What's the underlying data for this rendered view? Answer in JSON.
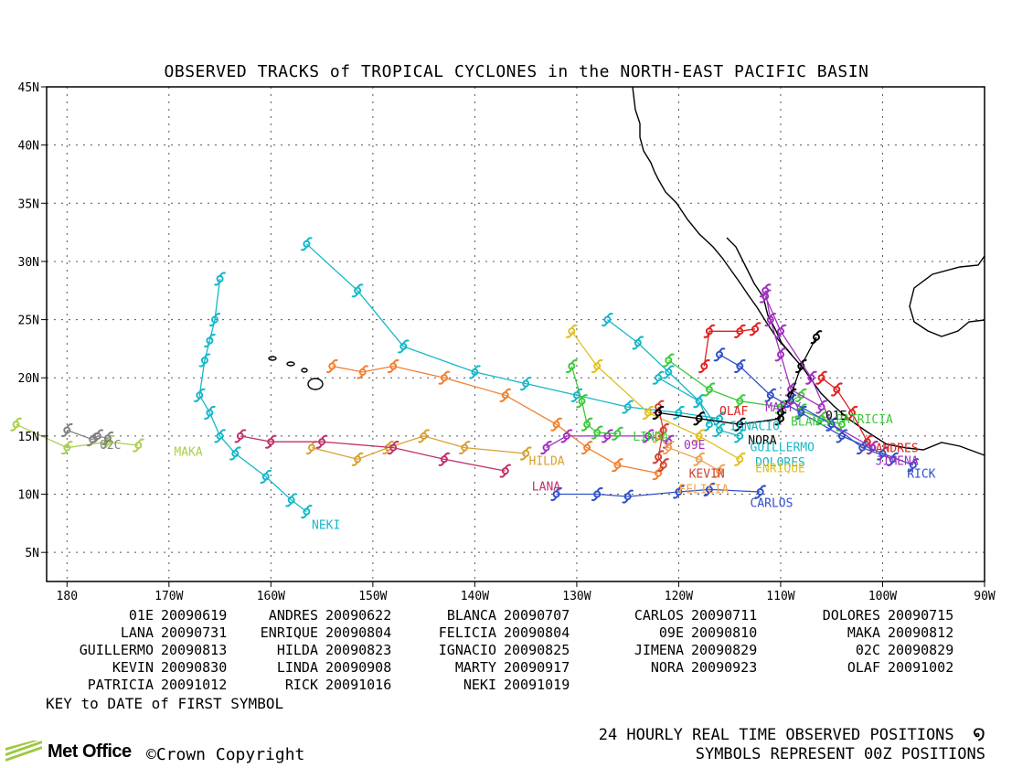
{
  "title": "OBSERVED TRACKS of TROPICAL CYCLONES in the NORTH-EAST PACIFIC BASIN",
  "axes": {
    "lat_ticks": [
      "45N",
      "40N",
      "35N",
      "30N",
      "25N",
      "20N",
      "15N",
      "10N",
      "5N"
    ],
    "lon_ticks": [
      "180",
      "170W",
      "160W",
      "150W",
      "140W",
      "130W",
      "120W",
      "110W",
      "100W",
      "90W"
    ]
  },
  "key": [
    {
      "name": "01E",
      "date": "20090619"
    },
    {
      "name": "ANDRES",
      "date": "20090622"
    },
    {
      "name": "BLANCA",
      "date": "20090707"
    },
    {
      "name": "CARLOS",
      "date": "20090711"
    },
    {
      "name": "DOLORES",
      "date": "20090715"
    },
    {
      "name": "LANA",
      "date": "20090731"
    },
    {
      "name": "ENRIQUE",
      "date": "20090804"
    },
    {
      "name": "FELICIA",
      "date": "20090804"
    },
    {
      "name": "09E",
      "date": "20090810"
    },
    {
      "name": "MAKA",
      "date": "20090812"
    },
    {
      "name": "GUILLERMO",
      "date": "20090813"
    },
    {
      "name": "HILDA",
      "date": "20090823"
    },
    {
      "name": "IGNACIO",
      "date": "20090825"
    },
    {
      "name": "JIMENA",
      "date": "20090829"
    },
    {
      "name": "02C",
      "date": "20090829"
    },
    {
      "name": "KEVIN",
      "date": "20090830"
    },
    {
      "name": "LINDA",
      "date": "20090908"
    },
    {
      "name": "MARTY",
      "date": "20090917"
    },
    {
      "name": "NORA",
      "date": "20090923"
    },
    {
      "name": "OLAF",
      "date": "20091002"
    },
    {
      "name": "PATRICIA",
      "date": "20091012"
    },
    {
      "name": "RICK",
      "date": "20091016"
    },
    {
      "name": "NEKI",
      "date": "20091019"
    }
  ],
  "key_note": "KEY to DATE of FIRST SYMBOL",
  "legend_line1": "24 HOURLY REAL TIME OBSERVED POSITIONS",
  "legend_line2": "SYMBOLS REPRESENT 00Z POSITIONS",
  "logo_text": "Met Office",
  "copyright": "©Crown Copyright",
  "map_labels": [
    {
      "text": "NEKI",
      "lon": -156.0,
      "lat": 7.0,
      "color": "#14b8c8"
    },
    {
      "text": "MAKA",
      "lon": -169.5,
      "lat": 13.3,
      "color": "#a8d04a"
    },
    {
      "text": "02C",
      "lon": -176.8,
      "lat": 13.9,
      "color": "#808080"
    },
    {
      "text": "HILDA",
      "lon": -134.7,
      "lat": 12.5,
      "color": "#d8a030"
    },
    {
      "text": "LANA",
      "lon": -134.4,
      "lat": 10.3,
      "color": "#c0306c"
    },
    {
      "text": "LINDA",
      "lon": -124.5,
      "lat": 14.6,
      "color": "#3cc83c"
    },
    {
      "text": "09E",
      "lon": -119.5,
      "lat": 13.9,
      "color": "#a030c0"
    },
    {
      "text": "KEVIN",
      "lon": -119.0,
      "lat": 11.4,
      "color": "#d04030"
    },
    {
      "text": "FELICIA",
      "lon": -120.0,
      "lat": 10.1,
      "color": "#f0a050"
    },
    {
      "text": "CARLOS",
      "lon": -113.0,
      "lat": 8.9,
      "color": "#3050c8"
    },
    {
      "text": "OLAF",
      "lon": -116.0,
      "lat": 16.8,
      "color": "#e02020"
    },
    {
      "text": "IGNACIO",
      "lon": -115.0,
      "lat": 15.5,
      "color": "#14b8c8"
    },
    {
      "text": "NORA",
      "lon": -113.2,
      "lat": 14.3,
      "color": "#000000"
    },
    {
      "text": "GUILLERMO",
      "lon": -113.0,
      "lat": 13.7,
      "color": "#14b8c8"
    },
    {
      "text": "DOLORES",
      "lon": -112.5,
      "lat": 12.4,
      "color": "#14b8c8"
    },
    {
      "text": "ENRIQUE",
      "lon": -112.5,
      "lat": 11.9,
      "color": "#e0c020"
    },
    {
      "text": "MARTY",
      "lon": -111.5,
      "lat": 17.1,
      "color": "#a030c0"
    },
    {
      "text": "BLANCA",
      "lon": -109.0,
      "lat": 15.9,
      "color": "#3cc83c"
    },
    {
      "text": "01E",
      "lon": -105.6,
      "lat": 16.4,
      "color": "#000000"
    },
    {
      "text": "PATRICIA",
      "lon": -104.6,
      "lat": 16.1,
      "color": "#3cc83c"
    },
    {
      "text": "ANDRES",
      "lon": -100.7,
      "lat": 13.6,
      "color": "#e02020"
    },
    {
      "text": "JIMENA",
      "lon": -100.7,
      "lat": 12.5,
      "color": "#a030c0"
    },
    {
      "text": "RICK",
      "lon": -97.6,
      "lat": 11.4,
      "color": "#3050c8"
    }
  ],
  "tracks": [
    {
      "name": "NEKI",
      "color": "#14b8c8",
      "points": [
        [
          -156.5,
          31.5
        ],
        [
          -151.5,
          27.5
        ],
        [
          -147,
          22.7
        ],
        [
          -140,
          20.5
        ],
        [
          -135,
          19.5
        ],
        [
          -130,
          18.5
        ],
        [
          -125,
          17.5
        ],
        [
          -120,
          17.0
        ],
        [
          -116,
          16.5
        ]
      ]
    },
    {
      "name": "NEKI-2",
      "color": "#14b8c8",
      "points": [
        [
          -156.5,
          8.5
        ],
        [
          -158,
          9.5
        ],
        [
          -160.5,
          11.5
        ],
        [
          -163.5,
          13.5
        ],
        [
          -165,
          15
        ],
        [
          -166,
          17
        ],
        [
          -167,
          18.5
        ],
        [
          -166.5,
          21.5
        ],
        [
          -166,
          23.2
        ],
        [
          -165.5,
          25
        ],
        [
          -165,
          28.5
        ]
      ]
    },
    {
      "name": "MAKA",
      "color": "#a8d04a",
      "points": [
        [
          -185,
          16
        ],
        [
          -180,
          14
        ],
        [
          -176,
          14.5
        ],
        [
          -173,
          14.2
        ]
      ]
    },
    {
      "name": "02C",
      "color": "#808080",
      "points": [
        [
          -180,
          15.5
        ],
        [
          -177.5,
          14.7
        ],
        [
          -177,
          15
        ],
        [
          -176,
          14.8
        ]
      ]
    },
    {
      "name": "ANDRES-ENRIQUE",
      "color": "#f08030",
      "points": [
        [
          -154,
          21
        ],
        [
          -151,
          20.5
        ],
        [
          -148,
          21
        ],
        [
          -143,
          20
        ],
        [
          -137,
          18.5
        ],
        [
          -132,
          16
        ],
        [
          -129,
          14
        ],
        [
          -126,
          12.5
        ],
        [
          -122,
          11.8
        ]
      ]
    },
    {
      "name": "HILDA",
      "color": "#d8a030",
      "points": [
        [
          -156,
          14
        ],
        [
          -151.5,
          13
        ],
        [
          -148.5,
          14
        ],
        [
          -145,
          15
        ],
        [
          -141,
          14
        ],
        [
          -135,
          13.5
        ]
      ]
    },
    {
      "name": "LANA",
      "color": "#c0306c",
      "points": [
        [
          -163,
          15
        ],
        [
          -160,
          14.5
        ],
        [
          -155,
          14.5
        ],
        [
          -148,
          14
        ],
        [
          -143,
          13
        ],
        [
          -137,
          12
        ]
      ]
    },
    {
      "name": "CARLOS",
      "color": "#3050c8",
      "points": [
        [
          -132,
          10
        ],
        [
          -128,
          10
        ],
        [
          -125,
          9.8
        ],
        [
          -120,
          10.2
        ],
        [
          -117,
          10.4
        ],
        [
          -112,
          10.2
        ]
      ]
    },
    {
      "name": "09E",
      "color": "#a030c0",
      "points": [
        [
          -133,
          14
        ],
        [
          -131,
          15
        ],
        [
          -127,
          15
        ],
        [
          -123,
          15
        ],
        [
          -121,
          14.5
        ]
      ]
    },
    {
      "name": "LINDA",
      "color": "#3cc83c",
      "points": [
        [
          -130.5,
          21
        ],
        [
          -129.5,
          18
        ],
        [
          -129,
          16
        ],
        [
          -128,
          15.3
        ],
        [
          -126,
          15.2
        ]
      ]
    },
    {
      "name": "GUILLERMO",
      "color": "#14b8c8",
      "points": [
        [
          -127,
          25
        ],
        [
          -124,
          23
        ],
        [
          -121,
          20.5
        ],
        [
          -118,
          18
        ],
        [
          -117,
          16
        ]
      ]
    },
    {
      "name": "DOLORES",
      "color": "#e0c020",
      "points": [
        [
          -130.5,
          24
        ],
        [
          -128,
          21
        ],
        [
          -123,
          17
        ],
        [
          -118,
          15
        ],
        [
          -114,
          13
        ]
      ]
    },
    {
      "name": "FELICIA",
      "color": "#f0a050",
      "points": [
        [
          -122,
          15
        ],
        [
          -121,
          14
        ],
        [
          -118,
          13
        ],
        [
          -116,
          12
        ]
      ]
    },
    {
      "name": "KEVIN",
      "color": "#d04030",
      "points": [
        [
          -122,
          17.5
        ],
        [
          -121.5,
          15.5
        ],
        [
          -122,
          13.2
        ],
        [
          -121.5,
          12.5
        ]
      ]
    },
    {
      "name": "OLAF",
      "color": "#e02020",
      "points": [
        [
          -117.5,
          21
        ],
        [
          -117,
          24
        ],
        [
          -114,
          24
        ],
        [
          -112.5,
          24.2
        ]
      ]
    },
    {
      "name": "IGNACIO",
      "color": "#14b8c8",
      "points": [
        [
          -122,
          20
        ],
        [
          -118,
          18
        ],
        [
          -116,
          15.5
        ],
        [
          -114,
          15
        ]
      ]
    },
    {
      "name": "NORA",
      "color": "#000000",
      "points": [
        [
          -122,
          17
        ],
        [
          -118,
          16.5
        ],
        [
          -114,
          16
        ],
        [
          -110,
          16.5
        ]
      ]
    },
    {
      "name": "BLANCA",
      "color": "#3cc83c",
      "points": [
        [
          -121,
          21.5
        ],
        [
          -117,
          19
        ],
        [
          -114,
          18
        ],
        [
          -110,
          17.5
        ],
        [
          -108,
          18.5
        ]
      ]
    },
    {
      "name": "MARTY",
      "color": "#a030c0",
      "points": [
        [
          -111.5,
          27.5
        ],
        [
          -111,
          25
        ],
        [
          -110,
          22
        ],
        [
          -109,
          19
        ],
        [
          -106,
          17.5
        ]
      ]
    },
    {
      "name": "01E",
      "color": "#000000",
      "points": [
        [
          -106.5,
          23.5
        ],
        [
          -108,
          21
        ],
        [
          -109,
          18.5
        ],
        [
          -110,
          17
        ]
      ]
    },
    {
      "name": "PATRICIA",
      "color": "#3cc83c",
      "points": [
        [
          -108,
          17.2
        ],
        [
          -106,
          16.5
        ],
        [
          -104,
          16
        ]
      ]
    },
    {
      "name": "ANDRES",
      "color": "#e02020",
      "points": [
        [
          -106,
          20
        ],
        [
          -104.5,
          19
        ],
        [
          -103,
          17
        ],
        [
          -101.5,
          14.5
        ],
        [
          -101,
          14
        ]
      ]
    },
    {
      "name": "JIMENA",
      "color": "#a030c0",
      "points": [
        [
          -111.5,
          27
        ],
        [
          -110,
          24
        ],
        [
          -107,
          20
        ],
        [
          -105,
          16
        ],
        [
          -101,
          14
        ]
      ]
    },
    {
      "name": "RICK",
      "color": "#3050c8",
      "points": [
        [
          -97,
          12.5
        ],
        [
          -100,
          13.5
        ],
        [
          -104,
          15
        ],
        [
          -108,
          17
        ],
        [
          -111,
          18.5
        ],
        [
          -114,
          21
        ],
        [
          -116,
          22
        ]
      ]
    },
    {
      "name": "RICK-2",
      "color": "#3050c8",
      "points": [
        [
          -99,
          13
        ],
        [
          -102,
          14
        ],
        [
          -105,
          16
        ],
        [
          -109,
          18
        ]
      ]
    }
  ]
}
